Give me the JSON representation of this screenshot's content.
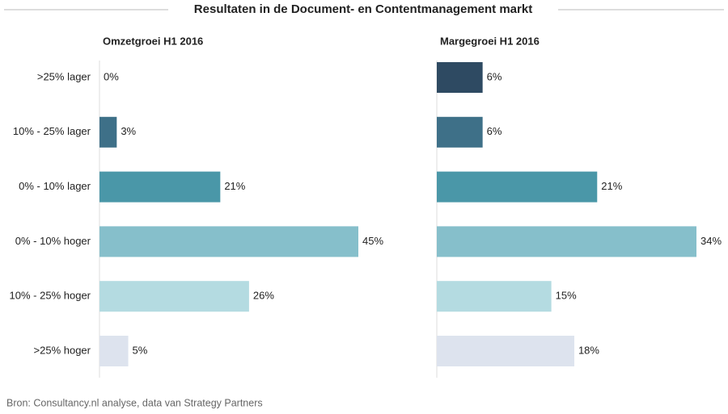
{
  "title": "Resultaten in de Document- en Contentmanagement markt",
  "source": "Bron: Consultancy.nl analyse, data van Strategy Partners",
  "chart_data": [
    {
      "type": "bar",
      "orientation": "horizontal",
      "title": "Omzetgroei H1 2016",
      "categories": [
        ">25% lager",
        "10% - 25% lager",
        "0% - 10% lager",
        "0% - 10% hoger",
        "10% - 25% hoger",
        ">25% hoger"
      ],
      "values": [
        0,
        3,
        21,
        45,
        26,
        5
      ],
      "value_labels": [
        "0%",
        "3%",
        "21%",
        "45%",
        "26%",
        "5%"
      ],
      "colors": [
        "#2e4a62",
        "#3e7088",
        "#4a97a8",
        "#86bfcb",
        "#b4dbe1",
        "#dde3ee"
      ]
    },
    {
      "type": "bar",
      "orientation": "horizontal",
      "title": "Margegroei H1 2016",
      "values": [
        6,
        6,
        21,
        34,
        15,
        18
      ],
      "value_labels": [
        "6%",
        "6%",
        "21%",
        "34%",
        "15%",
        "18%"
      ],
      "colors": [
        "#2e4a62",
        "#3e7088",
        "#4a97a8",
        "#86bfcb",
        "#b4dbe1",
        "#dde3ee"
      ]
    }
  ]
}
